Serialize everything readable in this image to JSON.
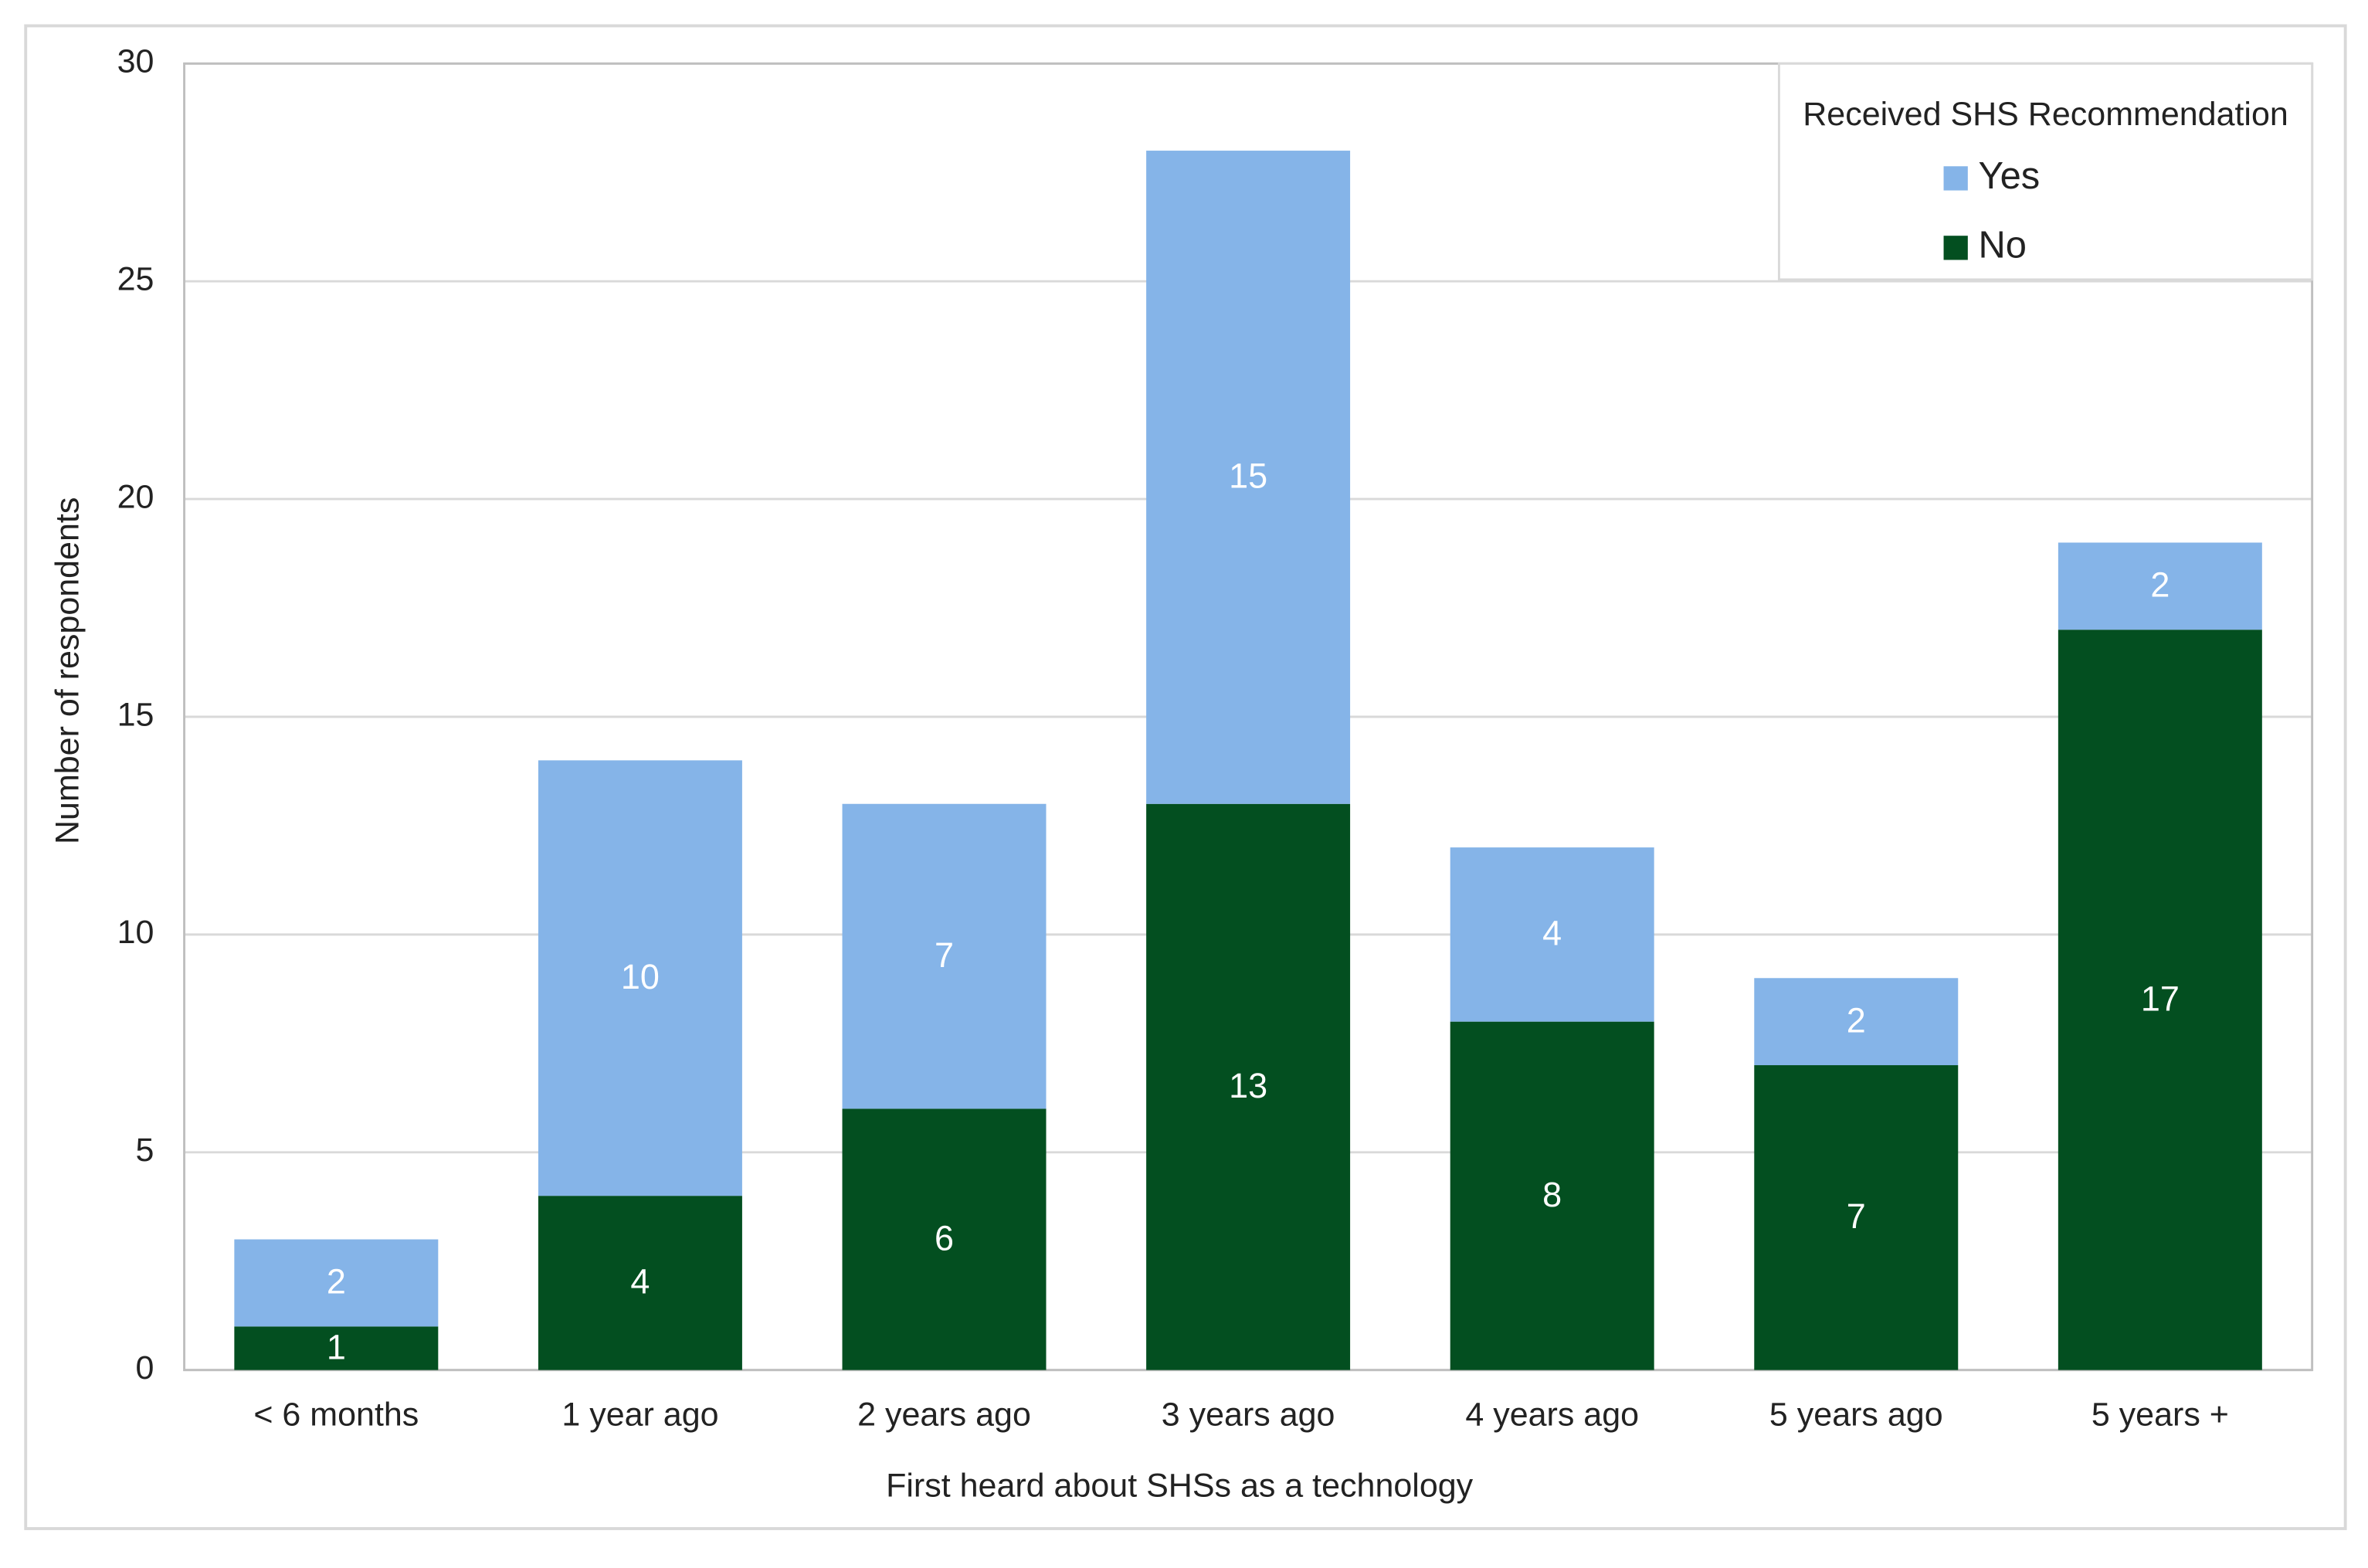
{
  "chart_data": {
    "type": "stacked_bar",
    "x_label": "First heard about SHSs as a technology",
    "y_label": "Number of respondents",
    "categories": [
      "< 6 months",
      "1 year ago",
      "2 years ago",
      "3 years ago",
      "4 years ago",
      "5 years ago",
      "5 years +"
    ],
    "series": [
      {
        "name": "No",
        "color": "#034f20",
        "values": [
          1,
          4,
          6,
          13,
          8,
          7,
          17
        ]
      },
      {
        "name": "Yes",
        "color": "#85b4e8",
        "values": [
          2,
          10,
          7,
          15,
          4,
          2,
          2
        ]
      }
    ],
    "legend_title": "Received SHS Recommendation",
    "legend_position": "upper right",
    "ylim": [
      0,
      30
    ],
    "yticks": [
      0,
      5,
      10,
      15,
      20,
      25,
      30
    ],
    "grid": true
  }
}
